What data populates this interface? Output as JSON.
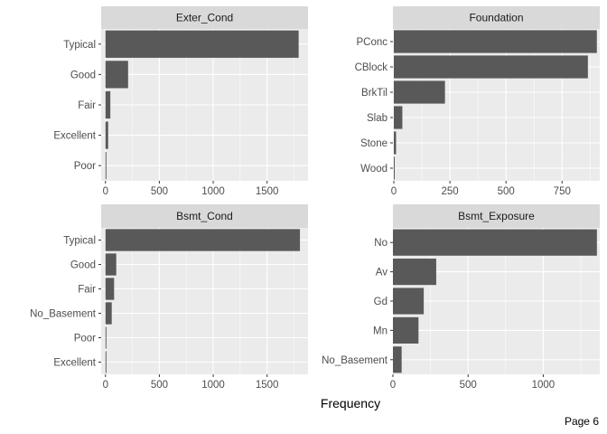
{
  "colors": {
    "panel_bg": "#EBEBEB",
    "strip_bg": "#D9D9D9",
    "grid_major": "#FFFFFF",
    "bar_fill": "#595959",
    "tick_color": "#333333"
  },
  "figure": {
    "xlabel": "Frequency",
    "page_label": "Page 6"
  },
  "chart_data": [
    {
      "type": "bar",
      "orientation": "horizontal",
      "title": "Exter_Cond",
      "categories": [
        "Typical",
        "Good",
        "Fair",
        "Excellent",
        "Poor"
      ],
      "values": [
        1793,
        210,
        45,
        25,
        2
      ],
      "xlim": [
        -40,
        1880
      ],
      "xticks": [
        0,
        500,
        1000,
        1500
      ],
      "xlabel": "Frequency",
      "grid": true
    },
    {
      "type": "bar",
      "orientation": "horizontal",
      "title": "Foundation",
      "categories": [
        "PConc",
        "CBlock",
        "BrkTil",
        "Slab",
        "Stone",
        "Wood"
      ],
      "values": [
        905,
        865,
        228,
        38,
        10,
        4
      ],
      "xlim": [
        -4,
        918
      ],
      "xticks": [
        0,
        250,
        500,
        750
      ],
      "xlabel": "Frequency",
      "grid": true
    },
    {
      "type": "bar",
      "orientation": "horizontal",
      "title": "Bsmt_Cond",
      "categories": [
        "Typical",
        "Good",
        "Fair",
        "No_Basement",
        "Poor",
        "Excellent"
      ],
      "values": [
        1805,
        100,
        80,
        58,
        3,
        2
      ],
      "xlim": [
        -40,
        1880
      ],
      "xticks": [
        0,
        500,
        1000,
        1500
      ],
      "xlabel": "Frequency",
      "grid": true
    },
    {
      "type": "bar",
      "orientation": "horizontal",
      "title": "Bsmt_Exposure",
      "categories": [
        "No",
        "Av",
        "Gd",
        "Mn",
        "No_Basement"
      ],
      "values": [
        1357,
        288,
        205,
        170,
        58
      ],
      "xlim": [
        0,
        1376
      ],
      "xticks": [
        0,
        500,
        1000
      ],
      "xlabel": "Frequency",
      "grid": true
    }
  ]
}
